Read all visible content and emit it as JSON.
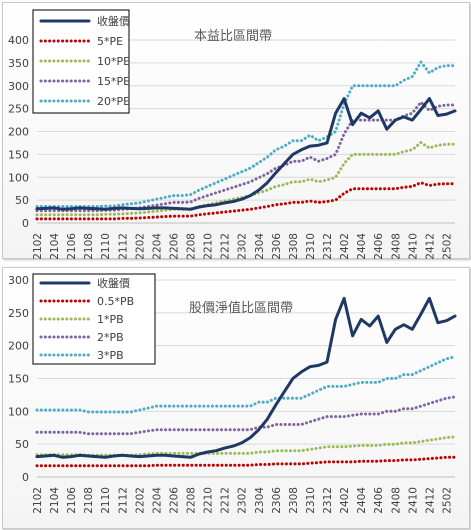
{
  "chart_data": [
    {
      "type": "line",
      "title": "本益比區間帶",
      "x": [
        "2102",
        "2103",
        "2104",
        "2105",
        "2106",
        "2107",
        "2108",
        "2109",
        "2110",
        "2111",
        "2112",
        "2201",
        "2202",
        "2203",
        "2204",
        "2205",
        "2206",
        "2207",
        "2208",
        "2209",
        "2210",
        "2211",
        "2212",
        "2301",
        "2302",
        "2303",
        "2304",
        "2305",
        "2306",
        "2307",
        "2308",
        "2309",
        "2310",
        "2311",
        "2312",
        "2401",
        "2402",
        "2403",
        "2404",
        "2405",
        "2406",
        "2407",
        "2408",
        "2409",
        "2410",
        "2411",
        "2412",
        "2501",
        "2502",
        "2503"
      ],
      "xticks": [
        "2102",
        "2104",
        "2106",
        "2108",
        "2110",
        "2112",
        "2202",
        "2204",
        "2206",
        "2208",
        "2210",
        "2212",
        "2302",
        "2304",
        "2306",
        "2308",
        "2310",
        "2312",
        "2402",
        "2404",
        "2406",
        "2408",
        "2410",
        "2412",
        "2502"
      ],
      "ylim": [
        0,
        400
      ],
      "yticks": [
        0,
        50,
        100,
        150,
        200,
        250,
        300,
        350,
        400
      ],
      "grid": true,
      "legend_position": "top-left",
      "series": [
        {
          "name": "收盤價",
          "color": "#1f3864",
          "style": "solid",
          "values": [
            31,
            32,
            33,
            30,
            31,
            33,
            32,
            31,
            30,
            32,
            33,
            32,
            31,
            32,
            33,
            33,
            32,
            31,
            30,
            35,
            38,
            40,
            44,
            47,
            52,
            60,
            72,
            88,
            110,
            130,
            150,
            160,
            168,
            170,
            175,
            240,
            272,
            215,
            240,
            230,
            245,
            205,
            225,
            232,
            225,
            248,
            272,
            235,
            238,
            245
          ]
        },
        {
          "name": "5*PE",
          "color": "#c00000",
          "style": "dotted",
          "values": [
            9,
            9,
            9,
            9,
            9,
            9,
            9,
            9,
            9,
            9,
            10,
            10,
            11,
            12,
            13,
            14,
            15,
            15,
            15,
            18,
            20,
            22,
            24,
            26,
            28,
            30,
            33,
            36,
            40,
            42,
            45,
            45,
            48,
            45,
            47,
            50,
            65,
            75,
            75,
            75,
            75,
            75,
            75,
            78,
            80,
            88,
            82,
            85,
            86,
            86
          ]
        },
        {
          "name": "10*PE",
          "color": "#9bbb59",
          "style": "dotted",
          "values": [
            18,
            18,
            18,
            18,
            18,
            18,
            18,
            18,
            19,
            19,
            20,
            21,
            22,
            24,
            26,
            28,
            30,
            30,
            31,
            36,
            40,
            44,
            48,
            52,
            56,
            60,
            66,
            72,
            80,
            84,
            90,
            90,
            96,
            90,
            94,
            100,
            130,
            150,
            150,
            150,
            150,
            150,
            150,
            156,
            160,
            176,
            164,
            170,
            172,
            172
          ]
        },
        {
          "name": "15*PE",
          "color": "#8064a2",
          "style": "dotted",
          "values": [
            27,
            27,
            27,
            27,
            27,
            27,
            27,
            27,
            28,
            28,
            30,
            31,
            33,
            36,
            39,
            42,
            45,
            45,
            46,
            54,
            60,
            66,
            72,
            78,
            84,
            90,
            99,
            108,
            120,
            126,
            135,
            135,
            144,
            135,
            141,
            150,
            195,
            225,
            225,
            225,
            225,
            225,
            225,
            234,
            240,
            264,
            246,
            255,
            258,
            258
          ]
        },
        {
          "name": "20*PE",
          "color": "#4bacc6",
          "style": "dotted",
          "values": [
            36,
            36,
            36,
            36,
            36,
            36,
            36,
            36,
            37,
            37,
            40,
            42,
            44,
            48,
            52,
            56,
            60,
            60,
            62,
            72,
            80,
            88,
            96,
            104,
            112,
            120,
            132,
            144,
            160,
            168,
            180,
            180,
            192,
            180,
            188,
            200,
            260,
            300,
            300,
            300,
            300,
            300,
            300,
            312,
            320,
            352,
            328,
            340,
            344,
            344
          ]
        }
      ]
    },
    {
      "type": "line",
      "title": "股價淨值比區間帶",
      "x": [
        "2102",
        "2103",
        "2104",
        "2105",
        "2106",
        "2107",
        "2108",
        "2109",
        "2110",
        "2111",
        "2112",
        "2201",
        "2202",
        "2203",
        "2204",
        "2205",
        "2206",
        "2207",
        "2208",
        "2209",
        "2210",
        "2211",
        "2212",
        "2301",
        "2302",
        "2303",
        "2304",
        "2305",
        "2306",
        "2307",
        "2308",
        "2309",
        "2310",
        "2311",
        "2312",
        "2401",
        "2402",
        "2403",
        "2404",
        "2405",
        "2406",
        "2407",
        "2408",
        "2409",
        "2410",
        "2411",
        "2412",
        "2501",
        "2502",
        "2503"
      ],
      "xticks": [
        "2102",
        "2104",
        "2106",
        "2108",
        "2110",
        "2112",
        "2202",
        "2204",
        "2206",
        "2208",
        "2210",
        "2212",
        "2302",
        "2304",
        "2306",
        "2308",
        "2310",
        "2312",
        "2402",
        "2404",
        "2406",
        "2408",
        "2410",
        "2412",
        "2502"
      ],
      "ylim": [
        0,
        300
      ],
      "yticks": [
        0,
        50,
        100,
        150,
        200,
        250,
        300
      ],
      "grid": true,
      "legend_position": "top-left",
      "series": [
        {
          "name": "收盤價",
          "color": "#1f3864",
          "style": "solid",
          "values": [
            31,
            32,
            33,
            30,
            31,
            33,
            32,
            31,
            30,
            32,
            33,
            32,
            31,
            32,
            33,
            33,
            32,
            31,
            30,
            35,
            38,
            40,
            44,
            47,
            52,
            60,
            72,
            88,
            110,
            130,
            150,
            160,
            168,
            170,
            175,
            240,
            272,
            215,
            240,
            230,
            245,
            205,
            225,
            232,
            225,
            248,
            272,
            235,
            238,
            245
          ]
        },
        {
          "name": "0.5*PB",
          "color": "#c00000",
          "style": "dotted",
          "values": [
            17,
            17,
            17,
            17,
            17,
            17,
            17,
            17,
            17,
            17,
            17,
            17,
            17,
            17,
            18,
            18,
            18,
            18,
            18,
            18,
            18,
            18,
            18,
            18,
            18,
            18,
            19,
            19,
            20,
            20,
            20,
            20,
            21,
            22,
            23,
            23,
            23,
            23,
            24,
            24,
            24,
            25,
            25,
            26,
            26,
            27,
            28,
            29,
            30,
            30
          ]
        },
        {
          "name": "1*PB",
          "color": "#9bbb59",
          "style": "dotted",
          "values": [
            34,
            34,
            34,
            34,
            34,
            34,
            33,
            33,
            33,
            33,
            33,
            33,
            34,
            35,
            36,
            36,
            36,
            36,
            36,
            36,
            36,
            36,
            36,
            36,
            36,
            36,
            38,
            38,
            40,
            40,
            40,
            40,
            42,
            44,
            46,
            46,
            46,
            47,
            48,
            48,
            48,
            50,
            50,
            52,
            52,
            54,
            56,
            58,
            60,
            61
          ]
        },
        {
          "name": "2*PB",
          "color": "#8064a2",
          "style": "dotted",
          "values": [
            68,
            68,
            68,
            68,
            68,
            68,
            66,
            66,
            66,
            66,
            66,
            66,
            68,
            70,
            72,
            72,
            72,
            72,
            72,
            72,
            72,
            72,
            72,
            72,
            72,
            72,
            76,
            76,
            80,
            80,
            80,
            80,
            84,
            88,
            92,
            92,
            92,
            94,
            96,
            96,
            96,
            100,
            100,
            104,
            104,
            108,
            112,
            116,
            120,
            122
          ]
        },
        {
          "name": "3*PB",
          "color": "#4bacc6",
          "style": "dotted",
          "values": [
            102,
            102,
            102,
            102,
            102,
            102,
            99,
            99,
            99,
            99,
            99,
            99,
            102,
            105,
            108,
            108,
            108,
            108,
            108,
            108,
            108,
            108,
            108,
            108,
            108,
            108,
            114,
            114,
            120,
            120,
            120,
            120,
            126,
            132,
            138,
            138,
            138,
            141,
            144,
            144,
            144,
            150,
            150,
            156,
            156,
            162,
            168,
            174,
            180,
            183
          ]
        }
      ]
    }
  ]
}
